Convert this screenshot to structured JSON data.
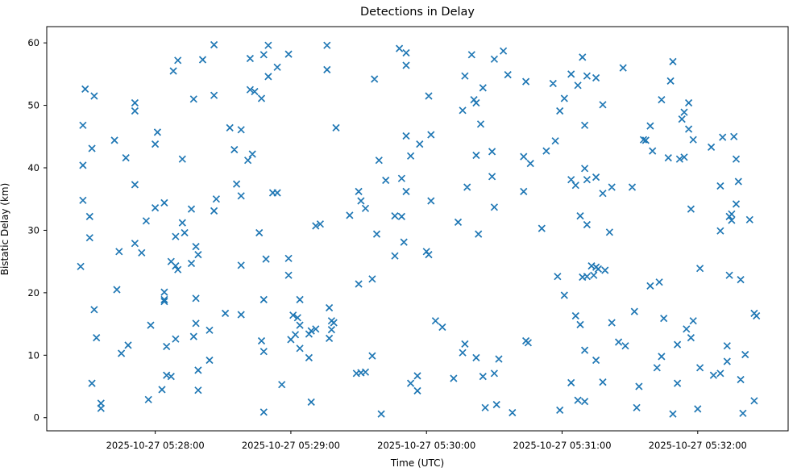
{
  "chart_data": {
    "type": "scatter",
    "title": "Detections in Delay",
    "xlabel": "Time (UTC)",
    "ylabel": "Bistatic Delay (km)",
    "marker": {
      "style": "x",
      "color": "#1f77b4",
      "size": 8,
      "stroke_width": 1.7
    },
    "axes_color": "#000000",
    "background": "#ffffff",
    "x_axis": {
      "base_time": "2025-10-27 05:27:00",
      "range_seconds": [
        12,
        340
      ],
      "tick_seconds": [
        60,
        120,
        180,
        240,
        300
      ],
      "tick_labels": [
        "2025-10-27 05:28:00",
        "2025-10-27 05:29:00",
        "2025-10-27 05:30:00",
        "2025-10-27 05:31:00",
        "2025-10-27 05:32:00"
      ]
    },
    "y_axis": {
      "range": [
        -2.1,
        62.6
      ],
      "ticks": [
        0,
        10,
        20,
        30,
        40,
        50,
        60
      ]
    },
    "points_format": [
      "seconds_after_2025-10-27_05:27:00_UTC",
      "bistatic_delay_km"
    ],
    "points": [
      [
        86,
        59.7
      ],
      [
        70,
        57.2
      ],
      [
        81,
        57.3
      ],
      [
        68,
        55.5
      ],
      [
        29,
        52.6
      ],
      [
        33,
        51.5
      ],
      [
        51,
        50.4
      ],
      [
        51,
        49.1
      ],
      [
        77,
        51.0
      ],
      [
        86,
        51.6
      ],
      [
        28,
        46.8
      ],
      [
        61,
        45.7
      ],
      [
        60,
        43.8
      ],
      [
        42,
        44.4
      ],
      [
        32,
        43.1
      ],
      [
        47,
        41.6
      ],
      [
        72,
        41.4
      ],
      [
        93,
        46.4
      ],
      [
        110,
        59.6
      ],
      [
        108,
        58.1
      ],
      [
        102,
        57.5
      ],
      [
        119,
        58.2
      ],
      [
        114,
        56.1
      ],
      [
        110,
        54.6
      ],
      [
        102,
        52.5
      ],
      [
        104,
        52.2
      ],
      [
        107,
        51.1
      ],
      [
        136,
        59.6
      ],
      [
        136,
        55.7
      ],
      [
        157,
        54.2
      ],
      [
        168,
        59.1
      ],
      [
        171,
        58.4
      ],
      [
        171,
        56.4
      ],
      [
        98,
        46.1
      ],
      [
        140,
        46.4
      ],
      [
        171,
        45.1
      ],
      [
        95,
        42.9
      ],
      [
        103,
        42.2
      ],
      [
        101,
        41.2
      ],
      [
        173,
        41.9
      ],
      [
        159,
        41.2
      ],
      [
        200,
        58.1
      ],
      [
        210,
        57.4
      ],
      [
        214,
        58.7
      ],
      [
        249,
        57.7
      ],
      [
        197,
        54.7
      ],
      [
        216,
        54.9
      ],
      [
        224,
        53.8
      ],
      [
        205,
        52.8
      ],
      [
        181,
        51.5
      ],
      [
        201,
        50.9
      ],
      [
        202,
        50.4
      ],
      [
        196,
        49.2
      ],
      [
        236,
        53.5
      ],
      [
        244,
        55.0
      ],
      [
        251,
        54.7
      ],
      [
        255,
        54.4
      ],
      [
        247,
        53.2
      ],
      [
        241,
        51.1
      ],
      [
        239,
        49.1
      ],
      [
        258,
        50.1
      ],
      [
        204,
        47.0
      ],
      [
        250,
        46.8
      ],
      [
        182,
        45.3
      ],
      [
        177,
        43.8
      ],
      [
        237,
        44.3
      ],
      [
        202,
        42.0
      ],
      [
        209,
        42.6
      ],
      [
        223,
        41.8
      ],
      [
        226,
        40.7
      ],
      [
        233,
        42.7
      ],
      [
        267,
        56.0
      ],
      [
        289,
        57.0
      ],
      [
        288,
        53.9
      ],
      [
        284,
        50.9
      ],
      [
        296,
        50.4
      ],
      [
        294,
        48.9
      ],
      [
        293,
        47.8
      ],
      [
        279,
        46.7
      ],
      [
        276,
        44.5
      ],
      [
        277,
        44.4
      ],
      [
        296,
        46.2
      ],
      [
        298,
        44.5
      ],
      [
        311,
        44.9
      ],
      [
        316,
        45.0
      ],
      [
        306,
        43.3
      ],
      [
        280,
        42.7
      ],
      [
        287,
        41.6
      ],
      [
        292,
        41.4
      ],
      [
        294,
        41.7
      ],
      [
        317,
        41.4
      ],
      [
        28,
        40.4
      ],
      [
        51,
        37.3
      ],
      [
        28,
        34.8
      ],
      [
        31,
        32.2
      ],
      [
        31,
        28.8
      ],
      [
        60,
        33.6
      ],
      [
        64,
        34.4
      ],
      [
        76,
        33.4
      ],
      [
        87,
        35.0
      ],
      [
        86,
        33.1
      ],
      [
        56,
        31.5
      ],
      [
        72,
        31.2
      ],
      [
        69,
        29.0
      ],
      [
        73,
        29.6
      ],
      [
        51,
        27.9
      ],
      [
        54,
        26.4
      ],
      [
        44,
        26.6
      ],
      [
        78,
        27.4
      ],
      [
        79,
        26.1
      ],
      [
        67,
        25.0
      ],
      [
        69,
        24.3
      ],
      [
        70,
        23.7
      ],
      [
        76,
        24.7
      ],
      [
        27,
        24.2
      ],
      [
        43,
        20.5
      ],
      [
        64,
        20.1
      ],
      [
        64,
        18.9
      ],
      [
        78,
        19.1
      ],
      [
        96,
        37.4
      ],
      [
        98,
        35.5
      ],
      [
        112,
        36.0
      ],
      [
        114,
        36.0
      ],
      [
        150,
        36.2
      ],
      [
        151,
        34.7
      ],
      [
        153,
        33.5
      ],
      [
        146,
        32.4
      ],
      [
        162,
        38.0
      ],
      [
        169,
        38.3
      ],
      [
        171,
        36.2
      ],
      [
        166,
        32.3
      ],
      [
        169,
        32.2
      ],
      [
        131,
        30.7
      ],
      [
        133,
        31.0
      ],
      [
        106,
        29.6
      ],
      [
        158,
        29.4
      ],
      [
        170,
        28.1
      ],
      [
        166,
        25.9
      ],
      [
        109,
        25.4
      ],
      [
        119,
        25.5
      ],
      [
        98,
        24.4
      ],
      [
        119,
        22.8
      ],
      [
        150,
        21.4
      ],
      [
        156,
        22.2
      ],
      [
        209,
        38.6
      ],
      [
        198,
        36.9
      ],
      [
        223,
        36.2
      ],
      [
        182,
        34.7
      ],
      [
        210,
        33.7
      ],
      [
        194,
        31.3
      ],
      [
        203,
        29.4
      ],
      [
        231,
        30.3
      ],
      [
        244,
        38.1
      ],
      [
        246,
        37.2
      ],
      [
        250,
        39.9
      ],
      [
        251,
        38.1
      ],
      [
        255,
        38.5
      ],
      [
        258,
        35.9
      ],
      [
        248,
        32.3
      ],
      [
        251,
        30.9
      ],
      [
        180,
        26.6
      ],
      [
        181,
        26.1
      ],
      [
        238,
        22.6
      ],
      [
        249,
        22.5
      ],
      [
        251,
        22.6
      ],
      [
        254,
        22.8
      ],
      [
        253,
        24.3
      ],
      [
        255,
        24.1
      ],
      [
        256,
        23.8
      ],
      [
        259,
        23.6
      ],
      [
        241,
        19.6
      ],
      [
        262,
        36.9
      ],
      [
        271,
        36.9
      ],
      [
        310,
        37.1
      ],
      [
        318,
        37.8
      ],
      [
        297,
        33.4
      ],
      [
        317,
        34.2
      ],
      [
        315,
        32.6
      ],
      [
        314,
        32.2
      ],
      [
        315,
        31.6
      ],
      [
        323,
        31.7
      ],
      [
        310,
        29.9
      ],
      [
        261,
        29.7
      ],
      [
        301,
        23.9
      ],
      [
        314,
        22.8
      ],
      [
        319,
        22.1
      ],
      [
        283,
        21.7
      ],
      [
        279,
        21.1
      ],
      [
        64,
        18.6
      ],
      [
        33,
        17.3
      ],
      [
        91,
        16.7
      ],
      [
        58,
        14.8
      ],
      [
        78,
        15.1
      ],
      [
        84,
        14.0
      ],
      [
        77,
        13.0
      ],
      [
        34,
        12.8
      ],
      [
        48,
        11.6
      ],
      [
        45,
        10.3
      ],
      [
        65,
        11.4
      ],
      [
        69,
        12.6
      ],
      [
        84,
        9.2
      ],
      [
        79,
        7.6
      ],
      [
        65,
        6.8
      ],
      [
        67,
        6.6
      ],
      [
        63,
        4.5
      ],
      [
        79,
        4.4
      ],
      [
        32,
        5.5
      ],
      [
        57,
        2.9
      ],
      [
        36,
        2.3
      ],
      [
        36,
        1.5
      ],
      [
        108,
        18.9
      ],
      [
        124,
        18.9
      ],
      [
        98,
        16.5
      ],
      [
        137,
        17.6
      ],
      [
        121,
        16.4
      ],
      [
        123,
        16.0
      ],
      [
        124,
        14.8
      ],
      [
        128,
        13.4
      ],
      [
        129,
        13.9
      ],
      [
        131,
        14.2
      ],
      [
        138,
        15.5
      ],
      [
        139,
        15.2
      ],
      [
        138,
        14.1
      ],
      [
        137,
        12.7
      ],
      [
        120,
        12.5
      ],
      [
        122,
        13.3
      ],
      [
        107,
        12.3
      ],
      [
        108,
        10.6
      ],
      [
        124,
        11.1
      ],
      [
        128,
        9.6
      ],
      [
        156,
        9.9
      ],
      [
        149,
        7.1
      ],
      [
        151,
        7.2
      ],
      [
        153,
        7.3
      ],
      [
        116,
        5.3
      ],
      [
        129,
        2.5
      ],
      [
        108,
        0.9
      ],
      [
        160,
        0.6
      ],
      [
        173,
        5.5
      ],
      [
        176,
        6.7
      ],
      [
        176,
        4.3
      ],
      [
        184,
        15.5
      ],
      [
        187,
        14.5
      ],
      [
        246,
        16.3
      ],
      [
        248,
        14.9
      ],
      [
        197,
        11.8
      ],
      [
        196,
        10.4
      ],
      [
        202,
        9.6
      ],
      [
        212,
        9.4
      ],
      [
        224,
        12.3
      ],
      [
        225,
        12.0
      ],
      [
        250,
        10.8
      ],
      [
        255,
        9.2
      ],
      [
        210,
        7.1
      ],
      [
        205,
        6.6
      ],
      [
        192,
        6.3
      ],
      [
        244,
        5.6
      ],
      [
        247,
        2.8
      ],
      [
        250,
        2.6
      ],
      [
        239,
        1.2
      ],
      [
        206,
        1.6
      ],
      [
        211,
        2.1
      ],
      [
        218,
        0.8
      ],
      [
        272,
        17.0
      ],
      [
        262,
        15.2
      ],
      [
        285,
        15.9
      ],
      [
        298,
        15.5
      ],
      [
        295,
        14.2
      ],
      [
        297,
        12.8
      ],
      [
        265,
        12.1
      ],
      [
        268,
        11.5
      ],
      [
        291,
        11.7
      ],
      [
        325,
        16.7
      ],
      [
        326,
        16.3
      ],
      [
        313,
        11.5
      ],
      [
        284,
        9.8
      ],
      [
        313,
        9.0
      ],
      [
        321,
        10.1
      ],
      [
        282,
        8.0
      ],
      [
        301,
        8.0
      ],
      [
        307,
        6.8
      ],
      [
        310,
        7.1
      ],
      [
        319,
        6.1
      ],
      [
        258,
        5.7
      ],
      [
        274,
        5.0
      ],
      [
        291,
        5.5
      ],
      [
        273,
        1.6
      ],
      [
        289,
        0.6
      ],
      [
        300,
        1.4
      ],
      [
        325,
        2.7
      ],
      [
        320,
        0.7
      ]
    ]
  }
}
